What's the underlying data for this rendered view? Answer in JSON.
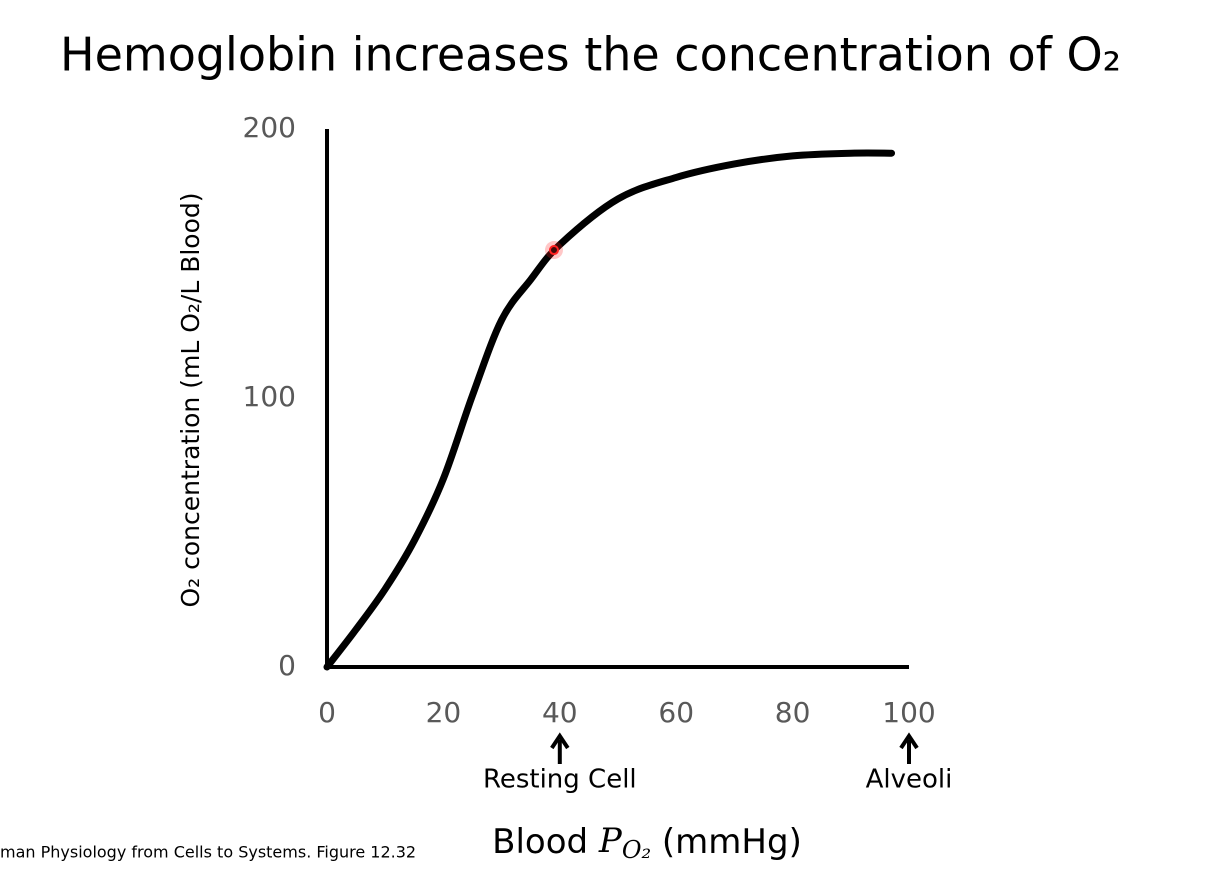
{
  "chart_data": {
    "type": "line",
    "title": "Hemoglobin increases the concentration of O₂",
    "y_label": "O₂ concentration (mL O₂/L Blood)",
    "x_label": {
      "text": "Blood",
      "symbol": "P",
      "subscript": "O₂",
      "unit": "(mmHg)"
    },
    "x": [
      0,
      5,
      10,
      15,
      20,
      25,
      30,
      35,
      40,
      50,
      60,
      70,
      80,
      90,
      97
    ],
    "series": [
      {
        "name": "Hemoglobin",
        "color": "#000000",
        "values": [
          0,
          14,
          29,
          47,
          70,
          101,
          129,
          144,
          157,
          174,
          182,
          187,
          190,
          191,
          191
        ]
      }
    ],
    "xlim": [
      0,
      100
    ],
    "xticks": [
      0,
      20,
      40,
      60,
      80,
      100
    ],
    "ylim": [
      0,
      200
    ],
    "yticks": [
      0,
      100,
      200
    ],
    "grid": false,
    "annotations": [
      {
        "x": 40,
        "text": "Resting Cell"
      },
      {
        "x": 100,
        "text": "Alveoli"
      }
    ],
    "marker": {
      "x": 39,
      "y": 155,
      "color": "#ff2020"
    },
    "source": "man Physiology from Cells to Systems. Figure 12.32"
  }
}
